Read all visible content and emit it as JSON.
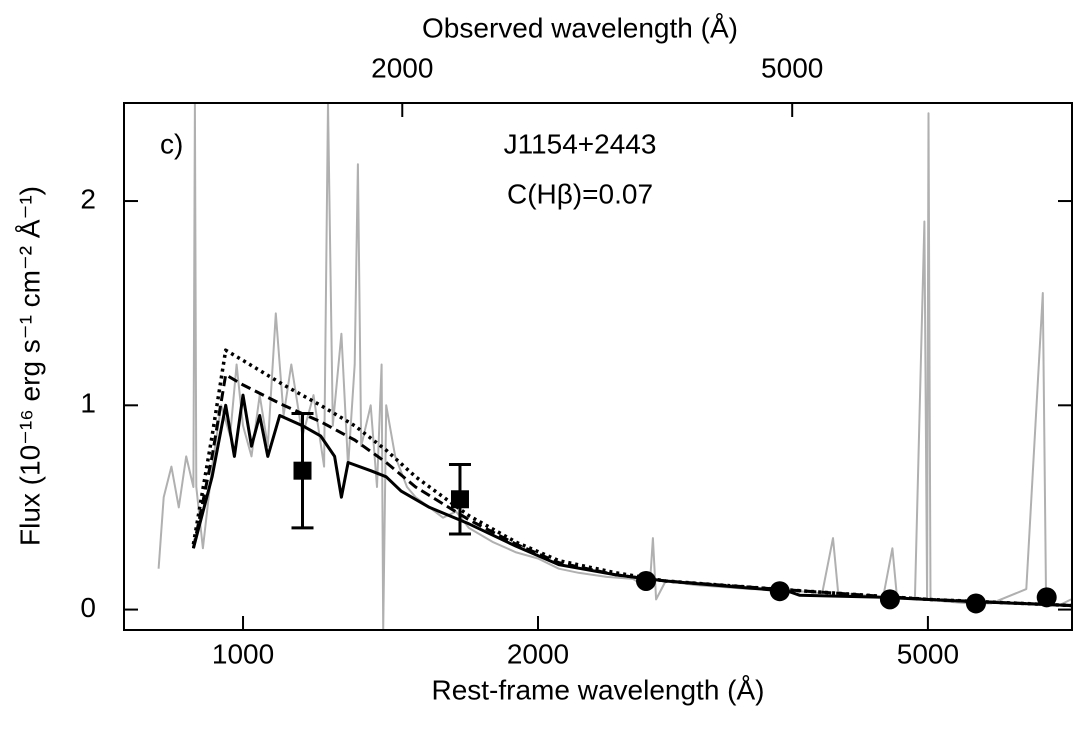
{
  "chart_data": {
    "type": "spectrum",
    "panel_label": "c)",
    "title": "J1154+2443",
    "subtitle": "C(Hβ)=0.07",
    "xlabel": "Rest-frame wavelength (Å)",
    "x2label": "Observed wavelength (Å)",
    "ylabel": "Flux (10⁻¹⁶ erg s⁻¹ cm⁻² Å⁻¹)",
    "xscale": "log",
    "xlim": [
      756,
      7015
    ],
    "xticks": [
      1000,
      2000,
      5000
    ],
    "x2lim": [
      1040,
      9650
    ],
    "x2ticks": [
      2000,
      5000
    ],
    "ylim": [
      -0.1,
      2.48
    ],
    "yticks": [
      0,
      1,
      2
    ],
    "series": [
      {
        "style": "spectrum",
        "color": "#b0b0b0",
        "x": [
          820,
          830,
          845,
          860,
          875,
          890,
          893,
          896,
          910,
          930,
          950,
          970,
          985,
          1000,
          1020,
          1040,
          1060,
          1080,
          1100,
          1120,
          1150,
          1180,
          1210,
          1221,
          1235,
          1260,
          1280,
          1300,
          1310,
          1320,
          1350,
          1370,
          1385,
          1390,
          1400,
          1430,
          1470,
          1500,
          1550,
          1600,
          1650,
          1700,
          1800,
          1900,
          2000,
          2100,
          2200,
          2350,
          2500,
          2600,
          2620,
          2640,
          2700,
          2900,
          3100,
          3300,
          3500,
          3700,
          3900,
          4000,
          4050,
          4300,
          4500,
          4600,
          4650,
          4850,
          4959,
          4990,
          5007,
          5030,
          5200,
          5500,
          5800,
          6300,
          6550,
          6600,
          6800,
          7000
        ],
        "values": [
          0.2,
          0.55,
          0.7,
          0.5,
          0.75,
          0.6,
          2.48,
          0.6,
          0.3,
          0.7,
          1.0,
          0.85,
          1.2,
          0.9,
          0.75,
          1.05,
          0.8,
          1.45,
          0.95,
          1.2,
          0.85,
          1.05,
          0.7,
          2.48,
          0.9,
          1.35,
          0.7,
          1.2,
          2.18,
          0.8,
          1.0,
          0.6,
          1.2,
          -0.1,
          1.0,
          0.75,
          0.6,
          0.55,
          0.5,
          0.45,
          0.48,
          0.4,
          0.33,
          0.28,
          0.25,
          0.2,
          0.18,
          0.16,
          0.15,
          0.1,
          0.35,
          0.05,
          0.14,
          0.12,
          0.11,
          0.1,
          0.1,
          0.09,
          0.08,
          0.35,
          0.08,
          0.07,
          0.06,
          0.3,
          0.06,
          0.05,
          1.9,
          0.05,
          2.43,
          0.05,
          0.04,
          0.03,
          0.03,
          0.1,
          1.55,
          0.03,
          0.02,
          0.05
        ]
      },
      {
        "style": "solid",
        "color": "#000000",
        "x": [
          890,
          930,
          960,
          980,
          1000,
          1020,
          1040,
          1060,
          1090,
          1150,
          1200,
          1240,
          1260,
          1280,
          1350,
          1400,
          1450,
          1550,
          1700,
          1900,
          2100,
          2400,
          2700,
          3200,
          3600,
          3700,
          4500,
          5500,
          7000
        ],
        "values": [
          0.3,
          0.65,
          1.0,
          0.75,
          1.05,
          0.8,
          0.95,
          0.75,
          0.95,
          0.9,
          0.85,
          0.75,
          0.55,
          0.72,
          0.68,
          0.65,
          0.58,
          0.5,
          0.42,
          0.31,
          0.22,
          0.17,
          0.14,
          0.11,
          0.09,
          0.07,
          0.06,
          0.04,
          0.02
        ]
      },
      {
        "style": "dashed",
        "color": "#000000",
        "x": [
          890,
          930,
          960,
          1000,
          1100,
          1200,
          1300,
          1400,
          1500,
          1700,
          1900,
          2100,
          2400,
          2700,
          3500,
          5000,
          7000
        ],
        "values": [
          0.3,
          0.75,
          1.15,
          1.1,
          1.0,
          0.92,
          0.83,
          0.72,
          0.6,
          0.44,
          0.32,
          0.23,
          0.17,
          0.14,
          0.1,
          0.05,
          0.02
        ]
      },
      {
        "style": "dotted",
        "color": "#000000",
        "x": [
          890,
          930,
          960,
          1000,
          1100,
          1200,
          1300,
          1400,
          1500,
          1700,
          1900,
          2100,
          2400,
          2700,
          3500,
          5000,
          7000
        ],
        "values": [
          0.32,
          0.85,
          1.27,
          1.22,
          1.1,
          1.0,
          0.9,
          0.78,
          0.65,
          0.46,
          0.33,
          0.24,
          0.18,
          0.14,
          0.1,
          0.05,
          0.02
        ]
      },
      {
        "style": "square",
        "color": "#000000",
        "x": [
          1150,
          1665
        ],
        "values": [
          0.68,
          0.54
        ],
        "errors": [
          0.28,
          0.17
        ]
      },
      {
        "style": "circle",
        "color": "#000000",
        "x": [
          2578,
          3530,
          4573,
          5598,
          6610
        ],
        "values": [
          0.14,
          0.09,
          0.05,
          0.03,
          0.06
        ]
      }
    ]
  }
}
